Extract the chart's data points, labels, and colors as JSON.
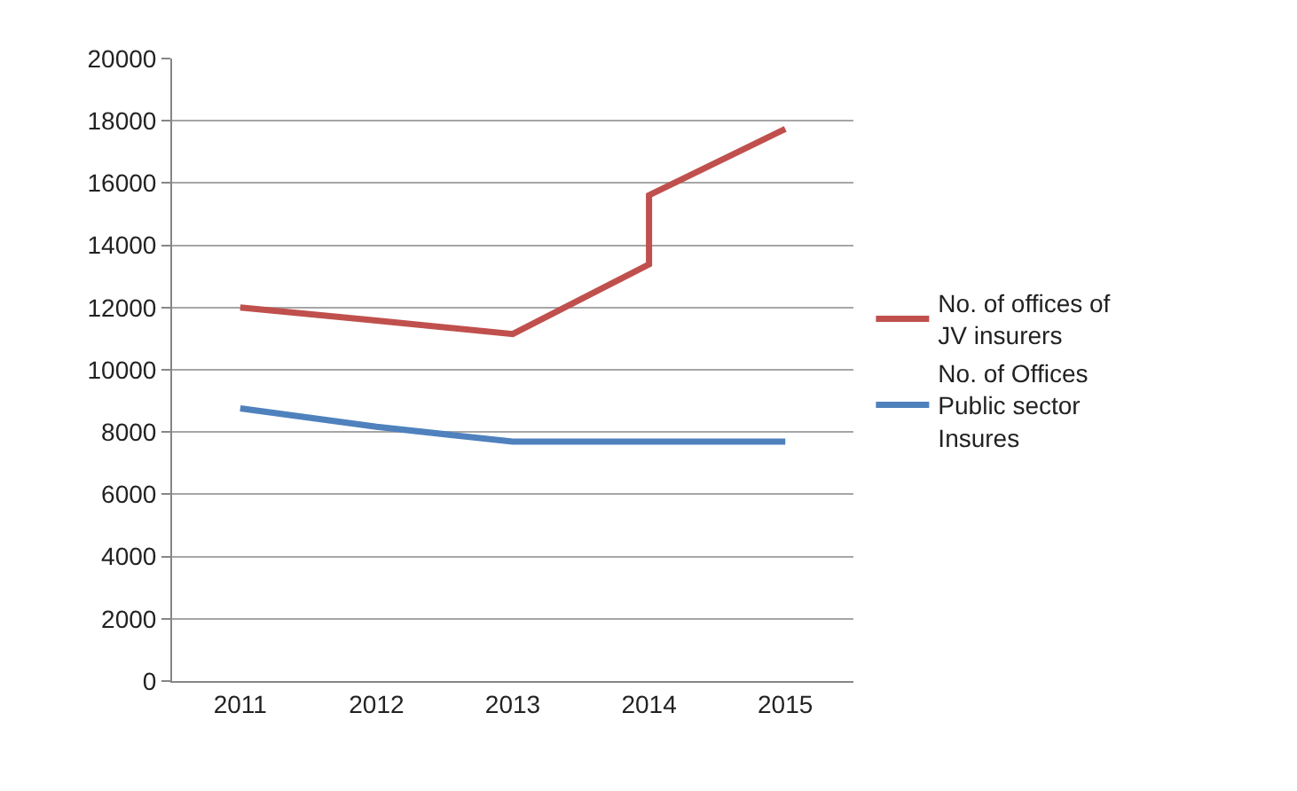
{
  "chart_data": {
    "type": "line",
    "xlim": [
      2010.5,
      2015.5
    ],
    "xticks": [
      2011,
      2012,
      2013,
      2014,
      2015
    ],
    "ylim": [
      0,
      20000
    ],
    "yticks": [
      0,
      2000,
      4000,
      6000,
      8000,
      10000,
      12000,
      14000,
      16000,
      18000,
      20000
    ],
    "grid": "y",
    "legend": "right",
    "marker": "none",
    "line_style": "solid",
    "series": [
      {
        "name": "No. of offices of JV insurers",
        "color": "#c0504d",
        "x": [
          2011,
          2012,
          2013,
          2014,
          2014,
          2015
        ],
        "values": [
          12000,
          11580,
          11150,
          13390,
          15610,
          17740
        ]
      },
      {
        "name": "No. of Offices Public sector Insures",
        "color": "#4f81bd",
        "x": [
          2011,
          2012,
          2013,
          2014,
          2015
        ],
        "values": [
          8760,
          8170,
          7690,
          7690,
          7690
        ]
      }
    ]
  }
}
